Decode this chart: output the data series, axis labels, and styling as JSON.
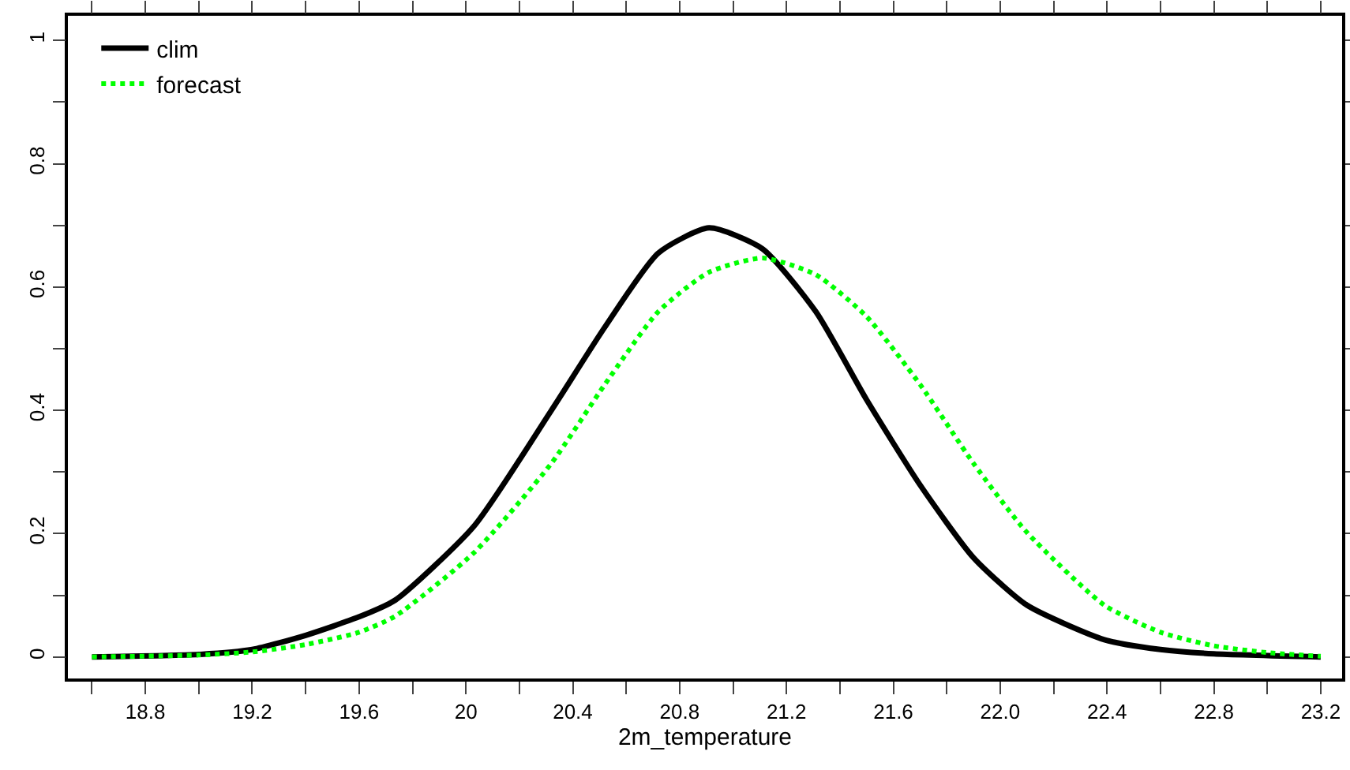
{
  "chart_data": {
    "type": "line",
    "xlabel": "2m_temperature",
    "xlim": [
      18.51,
      23.28
    ],
    "xticks": [
      {
        "value": 18.6,
        "label": null
      },
      18.8,
      {
        "value": 19,
        "label": null
      },
      19.2,
      {
        "value": 19.4,
        "label": null
      },
      19.6,
      {
        "value": 19.8,
        "label": null
      },
      20,
      {
        "value": 20.2,
        "label": null
      },
      20.4,
      {
        "value": 20.6,
        "label": null
      },
      20.8,
      {
        "value": 21,
        "label": null
      },
      21.2,
      {
        "value": 21.4,
        "label": null
      },
      21.6,
      {
        "value": 21.8,
        "label": null
      },
      {
        "value": 22,
        "label": "22.0"
      },
      {
        "value": 22.2,
        "label": null
      },
      22.4,
      {
        "value": 22.6,
        "label": null
      },
      22.8,
      {
        "value": 23,
        "label": null
      },
      23.2
    ],
    "ylim": [
      -0.035,
      1.04
    ],
    "yticks": [
      0,
      {
        "value": 0.1,
        "label": null
      },
      0.2,
      {
        "value": 0.3,
        "label": null
      },
      0.4,
      {
        "value": 0.5,
        "label": null
      },
      0.6,
      {
        "value": 0.7,
        "label": null
      },
      0.8,
      {
        "value": 0.9,
        "label": null
      },
      1
    ],
    "grid": false,
    "legend": "top left",
    "marker": "none",
    "series": [
      {
        "name": "clim",
        "color": "#000000",
        "line_style": "solid",
        "x": [
          18.6,
          19.0,
          19.2,
          19.4,
          19.6,
          19.735,
          20.03,
          20.32,
          20.52,
          20.72,
          20.91,
          21.11,
          21.31,
          21.5,
          21.7,
          21.9,
          22.1,
          22.39,
          22.6,
          22.8,
          23.2
        ],
        "values": [
          0,
          0.004,
          0.012,
          0.035,
          0.065,
          0.092,
          0.212,
          0.4,
          0.535,
          0.655,
          0.696,
          0.662,
          0.56,
          0.417,
          0.279,
          0.161,
          0.084,
          0.028,
          0.012,
          0.005,
          0
        ]
      },
      {
        "name": "forecast",
        "color": "#00ff00",
        "line_style": "dotted",
        "x": [
          18.6,
          19.0,
          19.2,
          19.4,
          19.6,
          19.735,
          20.03,
          20.32,
          20.52,
          20.72,
          20.91,
          21.11,
          21.31,
          21.5,
          21.7,
          21.9,
          22.1,
          22.39,
          22.6,
          22.8,
          23.0,
          23.2
        ],
        "values": [
          0,
          0.003,
          0.008,
          0.02,
          0.04,
          0.066,
          0.169,
          0.314,
          0.442,
          0.56,
          0.624,
          0.647,
          0.62,
          0.552,
          0.442,
          0.314,
          0.202,
          0.084,
          0.04,
          0.018,
          0.007,
          0.001
        ]
      }
    ]
  }
}
